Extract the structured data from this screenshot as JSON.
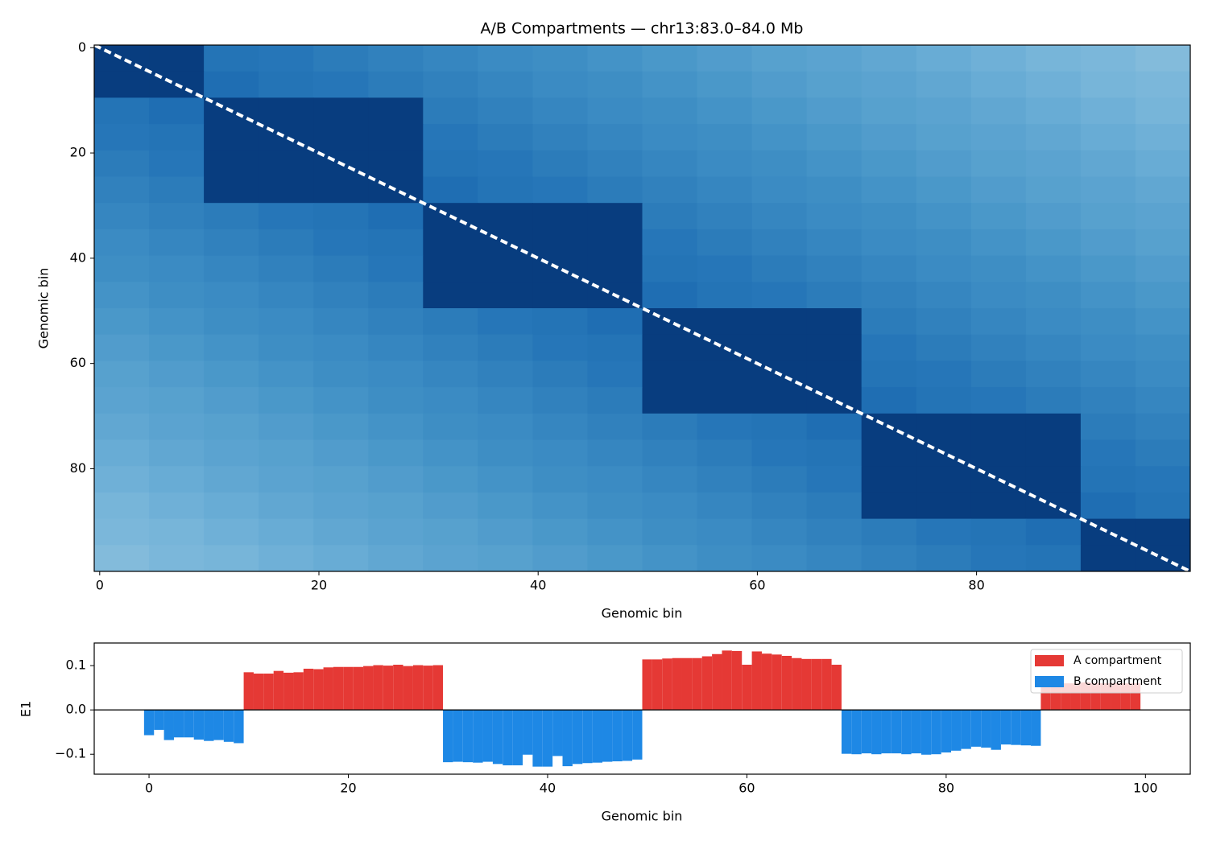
{
  "chart_data": [
    {
      "type": "heatmap",
      "title": "A/B Compartments — chr13:83.0–84.0 Mb",
      "xlabel": "Genomic bin",
      "ylabel": "Genomic bin",
      "colormap": "Blues",
      "xlim": [
        -0.5,
        99.5
      ],
      "ylim": [
        99.5,
        -0.5
      ],
      "xticks": [
        0,
        20,
        40,
        60,
        80
      ],
      "yticks": [
        0,
        20,
        40,
        60,
        80
      ],
      "z": [
        [
          0.95,
          0.95,
          0.74,
          0.73,
          0.71,
          0.69,
          0.67,
          0.65,
          0.64,
          0.62,
          0.6,
          0.58,
          0.56,
          0.55,
          0.53,
          0.51,
          0.49,
          0.47,
          0.46,
          0.44
        ],
        [
          0.95,
          0.95,
          0.76,
          0.74,
          0.73,
          0.71,
          0.69,
          0.67,
          0.65,
          0.64,
          0.62,
          0.6,
          0.58,
          0.56,
          0.55,
          0.53,
          0.51,
          0.49,
          0.47,
          0.46
        ],
        [
          0.74,
          0.76,
          0.95,
          0.95,
          0.95,
          0.95,
          0.71,
          0.69,
          0.67,
          0.65,
          0.64,
          0.62,
          0.6,
          0.58,
          0.56,
          0.55,
          0.53,
          0.51,
          0.49,
          0.47
        ],
        [
          0.73,
          0.74,
          0.95,
          0.95,
          0.95,
          0.95,
          0.73,
          0.71,
          0.69,
          0.67,
          0.65,
          0.64,
          0.62,
          0.6,
          0.58,
          0.56,
          0.55,
          0.53,
          0.51,
          0.49
        ],
        [
          0.71,
          0.73,
          0.95,
          0.95,
          0.95,
          0.95,
          0.74,
          0.73,
          0.71,
          0.69,
          0.67,
          0.65,
          0.64,
          0.62,
          0.6,
          0.58,
          0.56,
          0.55,
          0.53,
          0.51
        ],
        [
          0.69,
          0.71,
          0.95,
          0.95,
          0.95,
          0.95,
          0.76,
          0.74,
          0.73,
          0.71,
          0.69,
          0.67,
          0.65,
          0.64,
          0.62,
          0.6,
          0.58,
          0.56,
          0.55,
          0.53
        ],
        [
          0.67,
          0.69,
          0.71,
          0.73,
          0.74,
          0.76,
          0.95,
          0.95,
          0.95,
          0.95,
          0.71,
          0.69,
          0.67,
          0.65,
          0.64,
          0.62,
          0.6,
          0.58,
          0.56,
          0.55
        ],
        [
          0.65,
          0.67,
          0.69,
          0.71,
          0.73,
          0.74,
          0.95,
          0.95,
          0.95,
          0.95,
          0.73,
          0.71,
          0.69,
          0.67,
          0.65,
          0.64,
          0.62,
          0.6,
          0.58,
          0.56
        ],
        [
          0.64,
          0.65,
          0.67,
          0.69,
          0.71,
          0.73,
          0.95,
          0.95,
          0.95,
          0.95,
          0.74,
          0.73,
          0.71,
          0.69,
          0.67,
          0.65,
          0.64,
          0.62,
          0.6,
          0.58
        ],
        [
          0.62,
          0.64,
          0.65,
          0.67,
          0.69,
          0.71,
          0.95,
          0.95,
          0.95,
          0.95,
          0.76,
          0.74,
          0.73,
          0.71,
          0.69,
          0.67,
          0.65,
          0.64,
          0.62,
          0.6
        ],
        [
          0.6,
          0.62,
          0.64,
          0.65,
          0.67,
          0.69,
          0.71,
          0.73,
          0.74,
          0.76,
          0.95,
          0.95,
          0.95,
          0.95,
          0.71,
          0.69,
          0.67,
          0.65,
          0.64,
          0.62
        ],
        [
          0.58,
          0.6,
          0.62,
          0.64,
          0.65,
          0.67,
          0.69,
          0.71,
          0.73,
          0.74,
          0.95,
          0.95,
          0.95,
          0.95,
          0.73,
          0.71,
          0.69,
          0.67,
          0.65,
          0.64
        ],
        [
          0.56,
          0.58,
          0.6,
          0.62,
          0.64,
          0.65,
          0.67,
          0.69,
          0.71,
          0.73,
          0.95,
          0.95,
          0.95,
          0.95,
          0.74,
          0.73,
          0.71,
          0.69,
          0.67,
          0.65
        ],
        [
          0.55,
          0.56,
          0.58,
          0.6,
          0.62,
          0.64,
          0.65,
          0.67,
          0.69,
          0.71,
          0.95,
          0.95,
          0.95,
          0.95,
          0.76,
          0.74,
          0.73,
          0.71,
          0.69,
          0.67
        ],
        [
          0.53,
          0.55,
          0.56,
          0.58,
          0.6,
          0.62,
          0.64,
          0.65,
          0.67,
          0.69,
          0.71,
          0.73,
          0.74,
          0.76,
          0.95,
          0.95,
          0.95,
          0.95,
          0.71,
          0.69
        ],
        [
          0.51,
          0.53,
          0.55,
          0.56,
          0.58,
          0.6,
          0.62,
          0.64,
          0.65,
          0.67,
          0.69,
          0.71,
          0.73,
          0.74,
          0.95,
          0.95,
          0.95,
          0.95,
          0.73,
          0.71
        ],
        [
          0.49,
          0.51,
          0.53,
          0.55,
          0.56,
          0.58,
          0.6,
          0.62,
          0.64,
          0.65,
          0.67,
          0.69,
          0.71,
          0.73,
          0.95,
          0.95,
          0.95,
          0.95,
          0.74,
          0.73
        ],
        [
          0.47,
          0.49,
          0.51,
          0.53,
          0.55,
          0.56,
          0.58,
          0.6,
          0.62,
          0.64,
          0.65,
          0.67,
          0.69,
          0.71,
          0.95,
          0.95,
          0.95,
          0.95,
          0.76,
          0.74
        ],
        [
          0.46,
          0.47,
          0.49,
          0.51,
          0.53,
          0.55,
          0.56,
          0.58,
          0.6,
          0.62,
          0.64,
          0.65,
          0.67,
          0.69,
          0.71,
          0.73,
          0.74,
          0.76,
          0.95,
          0.95
        ],
        [
          0.44,
          0.46,
          0.47,
          0.49,
          0.51,
          0.53,
          0.55,
          0.56,
          0.58,
          0.6,
          0.62,
          0.64,
          0.65,
          0.67,
          0.69,
          0.71,
          0.73,
          0.74,
          0.95,
          0.95
        ]
      ]
    },
    {
      "type": "bar",
      "xlabel": "Genomic bin",
      "ylabel": "E1",
      "legend": "upper right",
      "xlim": [
        -5.5,
        104.5
      ],
      "ylim": [
        -0.145,
        0.151
      ],
      "xticks": [
        0,
        20,
        40,
        60,
        80,
        100
      ],
      "yticks": [
        {
          "value": -0.1,
          "label": "−0.1"
        },
        {
          "value": 0,
          "label": "0.0"
        },
        0.1
      ],
      "x": [
        0,
        1,
        2,
        3,
        4,
        5,
        6,
        7,
        8,
        9,
        10,
        11,
        12,
        13,
        14,
        15,
        16,
        17,
        18,
        19,
        20,
        21,
        22,
        23,
        24,
        25,
        26,
        27,
        28,
        29,
        30,
        31,
        32,
        33,
        34,
        35,
        36,
        37,
        38,
        39,
        40,
        41,
        42,
        43,
        44,
        45,
        46,
        47,
        48,
        49,
        50,
        51,
        52,
        53,
        54,
        55,
        56,
        57,
        58,
        59,
        60,
        61,
        62,
        63,
        64,
        65,
        66,
        67,
        68,
        69,
        70,
        71,
        72,
        73,
        74,
        75,
        76,
        77,
        78,
        79,
        80,
        81,
        82,
        83,
        84,
        85,
        86,
        87,
        88,
        89,
        90,
        91,
        92,
        93,
        94,
        95,
        96,
        97,
        98,
        99
      ],
      "series": [
        {
          "name": "A compartment",
          "color": "#e53935",
          "values": [
            null,
            null,
            null,
            null,
            null,
            null,
            null,
            null,
            null,
            null,
            0.085,
            0.082,
            0.082,
            0.088,
            0.084,
            0.085,
            0.093,
            0.092,
            0.096,
            0.097,
            0.097,
            0.097,
            0.099,
            0.101,
            0.1,
            0.102,
            0.099,
            0.101,
            0.1,
            0.101,
            null,
            null,
            null,
            null,
            null,
            null,
            null,
            null,
            null,
            null,
            null,
            null,
            null,
            null,
            null,
            null,
            null,
            null,
            null,
            null,
            0.114,
            0.114,
            0.116,
            0.117,
            0.117,
            0.117,
            0.121,
            0.126,
            0.134,
            0.133,
            0.102,
            0.132,
            0.127,
            0.125,
            0.122,
            0.117,
            0.115,
            0.115,
            0.115,
            0.102,
            null,
            null,
            null,
            null,
            null,
            null,
            null,
            null,
            null,
            null,
            null,
            null,
            null,
            null,
            null,
            null,
            null,
            null,
            null,
            null,
            0.062,
            0.062,
            0.06,
            0.06,
            0.062,
            0.061,
            0.06,
            0.06,
            0.06,
            0.06
          ]
        },
        {
          "name": "B compartment",
          "color": "#1e88e5",
          "values": [
            -0.057,
            -0.045,
            -0.068,
            -0.062,
            -0.062,
            -0.067,
            -0.07,
            -0.068,
            -0.072,
            -0.075,
            null,
            null,
            null,
            null,
            null,
            null,
            null,
            null,
            null,
            null,
            null,
            null,
            null,
            null,
            null,
            null,
            null,
            null,
            null,
            null,
            -0.118,
            -0.117,
            -0.118,
            -0.119,
            -0.117,
            -0.122,
            -0.125,
            -0.125,
            -0.101,
            -0.128,
            -0.128,
            -0.104,
            -0.127,
            -0.122,
            -0.12,
            -0.119,
            -0.117,
            -0.116,
            -0.115,
            -0.112,
            null,
            null,
            null,
            null,
            null,
            null,
            null,
            null,
            null,
            null,
            null,
            null,
            null,
            null,
            null,
            null,
            null,
            null,
            null,
            null,
            -0.099,
            -0.1,
            -0.098,
            -0.1,
            -0.098,
            -0.098,
            -0.1,
            -0.098,
            -0.101,
            -0.1,
            -0.096,
            -0.092,
            -0.088,
            -0.083,
            -0.085,
            -0.09,
            -0.078,
            -0.079,
            -0.08,
            -0.081,
            null,
            null,
            null,
            null,
            null,
            null,
            null,
            null,
            null,
            null
          ]
        }
      ]
    }
  ]
}
